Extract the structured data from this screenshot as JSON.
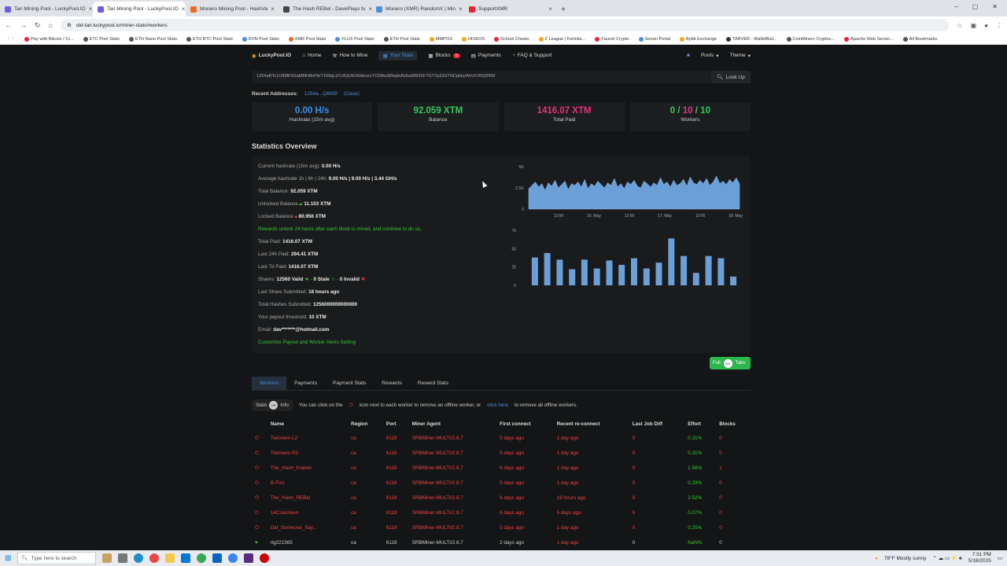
{
  "browser": {
    "tabs": [
      {
        "label": "Tari Mining Pool - LuckyPool.IO",
        "color": "#6c5ce7",
        "active": false
      },
      {
        "label": "Tari Mining Pool - LuckyPool.IO",
        "color": "#6c5ce7",
        "active": true
      },
      {
        "label": "Monero Mining Pool - HashVa",
        "color": "#f26822",
        "active": false
      },
      {
        "label": "The Hash REBel - DavePlays fu",
        "color": "#444444",
        "active": false
      },
      {
        "label": "Monero (XMR) RandomX | Min",
        "color": "#4a90d9",
        "active": false
      },
      {
        "label": "SupportXMR",
        "color": "#e23",
        "active": false
      }
    ],
    "url": "old-tari.luckypool.io/miner-stats#workers",
    "bookmarks": [
      "Pay with Bitcoin / Cr...",
      "ETC Pool Stats",
      "ETH Nano Pool Stats",
      "ETH BTC Pool Stats",
      "RVN Pool Stats",
      "XMR Pool Stats",
      "FLUX Pool Stats",
      "ETH Pool Stats",
      "MMPOS",
      "HIVEOS",
      "School Cheats",
      "Z League | Fortnite...",
      "Faucet Crypto",
      "Serum Portal",
      "Bybit Exchange",
      "TARVER - WalletBuil...",
      "CoinMinerz Cryptoc...",
      "Apache Web Server...",
      "All Bookmarks"
    ]
  },
  "sitenav": {
    "brand": "LuckyPool.IO",
    "items": [
      "Home",
      "How to Mine",
      "Your Stats",
      "Blocks",
      "Payments",
      "FAQ & Support"
    ],
    "blocks_badge": "0",
    "pools": "Pools",
    "theme": "Theme"
  },
  "address": {
    "value": "1254aRTc1U9MK5SqM8fH8nFfeT169qLd7c9QUtUWdeszzYC59kuNNqdn8v6w8W3XF7GTSy5ZdTNCpkbyWmXVRQ6N5f",
    "lookup": "Look Up",
    "recent_label": "Recent Addresses:",
    "recent_addr": "1254a...Q6N5f",
    "clear": "(Clear)"
  },
  "stats": [
    {
      "value": "0.00 H/s",
      "label": "Hashrate (15m avg)",
      "color": "#3b8fe0"
    },
    {
      "value": "92.059 XTM",
      "label": "Balance",
      "color": "#37c75a"
    },
    {
      "value": "1416.07 XTM",
      "label": "Total Paid",
      "color": "#e0357a"
    },
    {
      "value_a": "0 /",
      "value_b": "10",
      "value_c": "/ 10",
      "label": "Workers",
      "color": "#37c75a"
    }
  ],
  "overview": {
    "title": "Statistics Overview",
    "rows": {
      "cur_hash_k": "Current hashrate (15m avg):",
      "cur_hash_v": "0.00 H/s",
      "avg_hash_k": "Average hashrate 1h | 6h | 24h:",
      "avg_hash_v": "9.00 H/s | 9.00 H/s | 3.44 GH/s",
      "total_bal_k": "Total Balance:",
      "total_bal_v": "92.059 XTM",
      "unlocked_k": "Unlocked Balance",
      "unlocked_v": "11.103 XTM",
      "locked_k": "Locked Balance",
      "locked_v": "80.956 XTM",
      "rewards_note": "Rewards unlock 24 hours after each block is mined, and continue to do so.",
      "total_paid_k": "Total Paid:",
      "total_paid_v": "1416.07 XTM",
      "l24_k": "Last 24h Paid:",
      "l24_v": "294.41 XTM",
      "l7_k": "Last 7d Paid:",
      "l7_v": "1416.07 XTM",
      "shares_k": "Shares:",
      "shares_valid": "12560 Valid",
      "shares_stale": "0 Stale",
      "shares_invalid": "0 Invalid",
      "last_share_k": "Last Share Submitted:",
      "last_share_v": "18 hours ago",
      "total_hashes_k": "Total Hashes Submitted:",
      "total_hashes_v": "1256000000000000",
      "threshold_k": "Your payout threshold:",
      "threshold_v": "10 XTM",
      "email_k": "Email:",
      "email_v": "dav*******@hotmail.com",
      "customize": "Customize Payout and Worker Alerts Setting"
    }
  },
  "chart_data": [
    {
      "type": "area",
      "x_ticks": [
        "12:00",
        "16. May",
        "12:00",
        "17. May",
        "12:00",
        "18. May"
      ],
      "y_ticks": [
        "5G",
        "2.5G",
        "0"
      ],
      "ylim": [
        0,
        5
      ],
      "color": "#6a9fd8",
      "values": [
        2.4,
        2.8,
        3.2,
        2.6,
        3.0,
        2.2,
        3.1,
        2.7,
        3.4,
        2.5,
        2.9,
        3.3,
        2.3,
        3.0,
        2.8,
        3.2,
        2.6,
        3.5,
        2.4,
        3.0,
        2.7,
        3.3,
        2.9,
        2.5,
        3.1,
        2.8,
        3.6,
        2.6,
        3.0,
        2.4,
        3.2,
        2.9,
        3.4,
        2.7,
        2.5,
        3.3,
        3.0,
        2.6,
        3.1,
        2.8,
        3.7,
        2.9,
        3.2,
        2.6,
        3.4,
        2.8,
        3.0,
        3.5,
        2.7,
        3.8,
        3.1,
        2.9,
        3.4,
        3.0,
        3.6,
        2.8,
        3.2,
        3.9,
        3.0,
        3.3,
        2.9,
        3.5,
        3.1,
        3.7,
        3.0
      ]
    },
    {
      "type": "bar",
      "y_ticks": [
        "75",
        "50",
        "25",
        "0"
      ],
      "ylim": [
        0,
        75
      ],
      "color": "#6a9fd8",
      "values": [
        38,
        44,
        35,
        22,
        35,
        23,
        34,
        28,
        37,
        23,
        31,
        64,
        40,
        17,
        40,
        37,
        12
      ]
    }
  ],
  "toggle": {
    "left": "Full",
    "knob": "OR",
    "right": "Tabs"
  },
  "workers_tabs": [
    "Workers",
    "Payments",
    "Payment Stats",
    "Rewards",
    "Reward Stats"
  ],
  "help": {
    "stats": "Stats",
    "knob": "OR",
    "info": "Info",
    "text1": "You can click on the",
    "text2": "icon next to each worker to remove an offline worker, or",
    "click_here": "click here",
    "text3": "to remove all offline workers."
  },
  "table": {
    "headers": [
      "Name",
      "Region",
      "Port",
      "Miner Agent",
      "First connect",
      "Recent re-connect",
      "Last Job Diff",
      "Effort",
      "Blocks"
    ],
    "rows": [
      [
        "Twinnem-L2",
        "ca",
        "6118",
        "SRBMiner-MULTI/2.8.7",
        "5 days ago",
        "1 day ago",
        "0",
        "0.31%",
        "0"
      ],
      [
        "Twinnem-R2",
        "ca",
        "6118",
        "SRBMiner-MULTI/2.8.7",
        "5 days ago",
        "1 day ago",
        "0",
        "0.31%",
        "0"
      ],
      [
        "The_Hash_Kraken",
        "ca",
        "6118",
        "SRBMiner-MULTI/2.8.7",
        "6 days ago",
        "1 day ago",
        "0",
        "1.56%",
        "1"
      ],
      [
        "B-Fizz",
        "ca",
        "6118",
        "SRBMiner-MULTI/2.8.7",
        "5 days ago",
        "1 day ago",
        "0",
        "0.29%",
        "0"
      ],
      [
        "The_Hash_REBel",
        "ca",
        "6118",
        "SRBMiner-MULTI/2.8.7",
        "6 days ago",
        "19 hours ago",
        "0",
        "2.52%",
        "0"
      ],
      [
        "14CoreXeon",
        "ca",
        "6118",
        "SRBMiner-MULTI/2.8.7",
        "6 days ago",
        "5 days ago",
        "0",
        "0.07%",
        "0"
      ],
      [
        "Did_Someone_Say...",
        "ca",
        "6118",
        "SRBMiner-MULTI/2.8.7",
        "5 days ago",
        "1 day ago",
        "0",
        "0.25%",
        "0"
      ],
      [
        "rig221565",
        "ca",
        "6118",
        "SRBMiner-MULTI/2.8.7",
        "2 days ago",
        "1 day ago",
        "0",
        "NaN%",
        "0"
      ]
    ]
  },
  "taskbar": {
    "search": "Type here to search",
    "weather": "78°F  Mostly sunny",
    "time": "7:31 PM",
    "date": "5/18/2025"
  }
}
